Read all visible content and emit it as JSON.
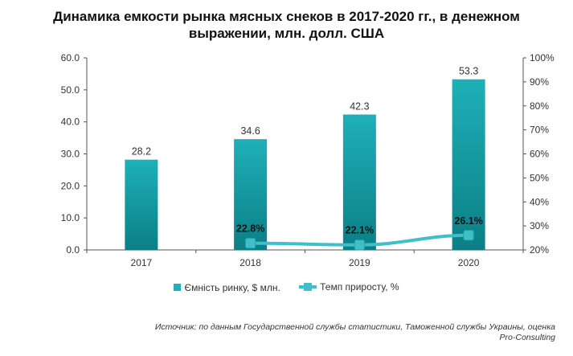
{
  "title": {
    "line1": "Динамика емкости рынка мясных снеков в 2017-2020 гг., в денежном",
    "line2": "выражении, млн. долл. США"
  },
  "chart_data": {
    "type": "bar",
    "categories": [
      "2017",
      "2018",
      "2019",
      "2020"
    ],
    "series": [
      {
        "name": "Ємність ринку, $ млн.",
        "type": "bar",
        "axis": "left",
        "values": [
          28.2,
          34.6,
          42.3,
          53.3
        ],
        "labels": [
          "28.2",
          "34.6",
          "42.3",
          "53.3"
        ],
        "color": "#17a2ab"
      },
      {
        "name": "Темп приросту, %",
        "type": "line",
        "axis": "right",
        "values": [
          null,
          22.8,
          22.1,
          26.1
        ],
        "labels": [
          "",
          "22.8%",
          "22.1%",
          "26.1%"
        ],
        "color": "#3fc0c8"
      }
    ],
    "y_left": {
      "min": 0,
      "max": 60,
      "step": 10,
      "ticks": [
        "0.0",
        "10.0",
        "20.0",
        "30.0",
        "40.0",
        "50.0",
        "60.0"
      ]
    },
    "y_right": {
      "min": 20,
      "max": 100,
      "step": 10,
      "ticks": [
        "20%",
        "30%",
        "40%",
        "50%",
        "60%",
        "70%",
        "80%",
        "90%",
        "100%"
      ]
    },
    "grid": false,
    "legend_position": "bottom"
  },
  "legend": {
    "bar_label": "Ємність ринку, $ млн.",
    "line_label": "Темп приросту, %"
  },
  "colors": {
    "bar_top": "#1fb0b8",
    "bar_bottom": "#0b7f86",
    "line": "#3fc0c8",
    "axis": "#555555"
  },
  "source": {
    "line1": "Источник: по данным Государственной службы статистики, Таможенной службы Украины, оценка",
    "line2": "Pro-Consulting"
  }
}
